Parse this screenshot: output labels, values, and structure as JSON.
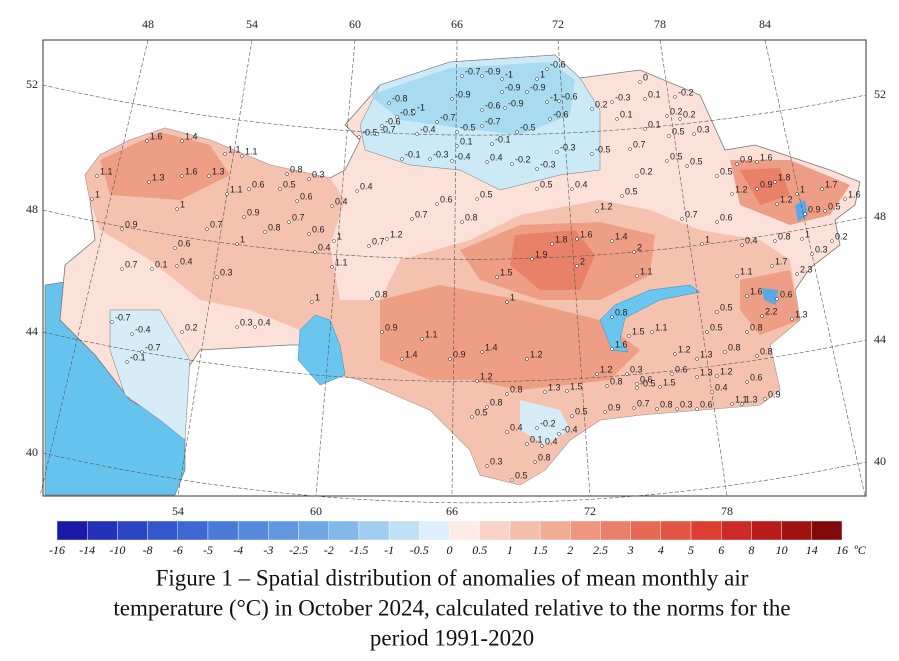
{
  "map": {
    "top_lon_ticks": [
      48,
      54,
      60,
      66,
      72,
      78,
      84
    ],
    "bottom_lon_ticks": [
      54,
      60,
      66,
      72,
      78
    ],
    "left_lat_ticks": [
      52,
      48,
      44,
      40
    ],
    "right_lat_ticks": [
      52,
      48,
      44,
      40
    ],
    "stations": [
      1.6,
      1.4,
      1.1,
      1.3,
      1.6,
      1.3,
      1.1,
      1.1,
      1,
      0.9,
      1,
      0.7,
      1.1,
      0.6,
      0.5,
      0.6,
      0.8,
      0.3,
      0.9,
      0.8,
      0.7,
      0.6,
      0.4,
      1,
      0.4,
      0.4,
      1,
      0.6,
      0.4,
      0.1,
      0.7,
      0.3,
      1.1,
      0.7,
      1.2,
      0.7,
      0.6,
      0.8,
      0.5,
      1.5,
      1.9,
      1.8,
      1.6,
      2,
      1.4,
      2,
      1.1,
      1,
      0.8,
      1,
      -0.7,
      -0.4,
      0.2,
      -0.7,
      -0.1,
      0.3,
      0.4,
      0.9,
      1.1,
      1.4,
      0.9,
      1.4,
      1.2,
      1.2,
      1.3,
      1.5,
      0.8,
      0.8,
      0.5,
      0.4,
      -0.2,
      -0.4,
      0.1,
      0.4,
      0.8,
      0.3,
      0.5,
      0.5,
      0.9,
      0.7,
      -0.8,
      -0.5,
      -1,
      -0.7,
      -0.4,
      -0.6,
      -0.5,
      -0.7,
      -0.1,
      -0.3,
      -0.4,
      -0.7,
      -0.9,
      -1,
      -0.6,
      1,
      -0.9,
      -0.9,
      -0.9,
      -1,
      -0.6,
      -0.6,
      -0.9,
      -0.7,
      -0.5,
      -0.6,
      -0.5,
      0.1,
      -0.1,
      0.4,
      -0.2,
      -0.3,
      -0.3,
      -0.5,
      0.2,
      -0.3,
      0.1,
      0,
      0.1,
      -0.2,
      0.2,
      0.2,
      0.1,
      0.5,
      0.3,
      0.7,
      0.5,
      0.5,
      0.2,
      0.5,
      0.5,
      0.4,
      0.5,
      1.2,
      0.7,
      0.6,
      0.4,
      1,
      0.9,
      1.6,
      1.2,
      0.9,
      1.8,
      1.2,
      1,
      1.7,
      1.6,
      0.9,
      0.5,
      0.8,
      1,
      0.3,
      0.2,
      1.7,
      2.3,
      1.1,
      1.6,
      0.6,
      2.2,
      1.3,
      0.8,
      0.5,
      0.5,
      0.8,
      1.5,
      1.1,
      1.6,
      1.2,
      1.3,
      0.8,
      0.8,
      0.6,
      1.2,
      0.3,
      0.8,
      -0.5,
      1.5,
      0.6,
      1.3,
      1.2,
      0.4,
      0.8,
      0.3,
      0.6,
      1.1,
      0.6,
      0.9,
      1.3
    ]
  },
  "colorbar": {
    "ticks": [
      -16,
      -14,
      -10,
      -8,
      -6,
      -5,
      -4,
      -3,
      -2.5,
      -2,
      -1.5,
      -1,
      -0.5,
      0,
      0.5,
      1,
      1.5,
      2,
      2.5,
      3,
      4,
      5,
      6,
      8,
      10,
      14,
      16
    ],
    "unit": "ºC",
    "colors": [
      "#1a1aa5",
      "#2330b8",
      "#2b44c4",
      "#3358cc",
      "#3d68d2",
      "#4a7ad8",
      "#5689dc",
      "#6298e0",
      "#70a8e5",
      "#82b8ea",
      "#a0cdf0",
      "#bfe0f5",
      "#ddeffa",
      "#fdebe6",
      "#f9d3c8",
      "#f5bfae",
      "#f1ab96",
      "#ee9680",
      "#ea8069",
      "#e76a54",
      "#e25542",
      "#dc3e31",
      "#cc2a24",
      "#b81c1a",
      "#a01212",
      "#800a0a"
    ]
  },
  "caption": {
    "lines": [
      "Figure 1 – Spatial distribution of anomalies of mean monthly air",
      "temperature (°C) in October 2024, calculated relative to the norms for the",
      "period 1991-2020"
    ]
  }
}
